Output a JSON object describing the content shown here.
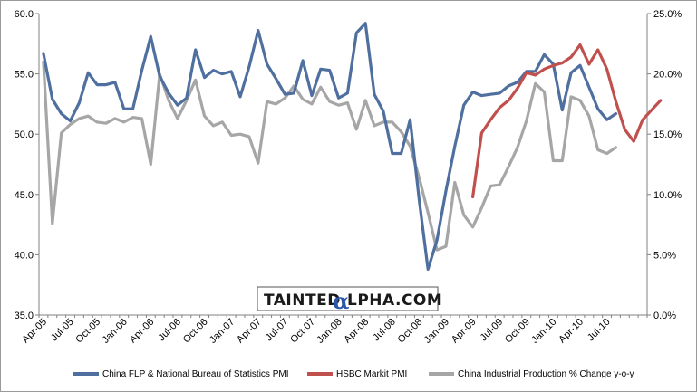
{
  "chart_data": {
    "type": "line",
    "title": "",
    "xlabel": "",
    "ylabel": "",
    "ylim": [
      35,
      60
    ],
    "y2lim": [
      0,
      25
    ],
    "yticks": [
      "35.0",
      "40.0",
      "45.0",
      "50.0",
      "55.0",
      "60.0"
    ],
    "y2ticks": [
      "0.0%",
      "5.0%",
      "10.0%",
      "15.0%",
      "20.0%",
      "25.0%"
    ],
    "xtick_labels": [
      "Apr-05",
      "Jul-05",
      "Oct-05",
      "Jan-06",
      "Apr-06",
      "Jul-06",
      "Oct-06",
      "Jan-07",
      "Apr-07",
      "Jul-07",
      "Oct-07",
      "Jan-08",
      "Apr-08",
      "Jul-08",
      "Oct-08",
      "Jan-09",
      "Apr-09",
      "Jul-09",
      "Oct-09",
      "Jan-10",
      "Apr-10",
      "Jul-10"
    ],
    "x_count": 68,
    "legend_position": "bottom",
    "series": [
      {
        "name": "China FLP & National Bureau of Statistics PMI",
        "axis": "left",
        "color": "#4f6f9f",
        "start": 0,
        "values": [
          56.7,
          52.9,
          51.7,
          51.1,
          52.6,
          55.1,
          54.1,
          54.1,
          54.3,
          52.1,
          52.1,
          55.3,
          58.1,
          54.8,
          53.4,
          52.4,
          53.0,
          57.0,
          54.7,
          55.3,
          55.0,
          55.2,
          53.1,
          55.6,
          58.6,
          55.8,
          54.6,
          53.3,
          53.4,
          56.1,
          53.2,
          55.4,
          55.3,
          53.0,
          53.4,
          58.4,
          59.2,
          53.3,
          51.9,
          48.4,
          48.4,
          51.2,
          44.6,
          38.8,
          41.2,
          45.3,
          49.0,
          52.4,
          53.5,
          53.2,
          53.3,
          53.4,
          54.0,
          54.3,
          55.2,
          55.2,
          56.6,
          55.8,
          52.0,
          55.1,
          55.7,
          53.9,
          52.1,
          51.2,
          51.7
        ]
      },
      {
        "name": "HSBC Markit PMI",
        "axis": "left",
        "color": "#c0504d",
        "start": 48,
        "values": [
          44.8,
          50.1,
          51.2,
          52.2,
          52.8,
          53.8,
          55.1,
          54.9,
          55.4,
          55.7,
          55.9,
          56.4,
          57.4,
          55.8,
          57.0,
          55.4,
          52.7,
          50.4,
          49.4,
          51.2,
          52.0,
          52.8
        ]
      },
      {
        "name": "China Industrial Production % Change y-o-y",
        "axis": "right",
        "color": "#a6a6a6",
        "start": 0,
        "values": [
          21.0,
          7.6,
          15.1,
          15.8,
          16.3,
          16.5,
          16.0,
          15.9,
          16.3,
          16.0,
          16.4,
          16.3,
          12.5,
          20.0,
          17.8,
          16.3,
          17.8,
          19.5,
          16.5,
          15.7,
          16.0,
          14.9,
          15.0,
          14.8,
          12.6,
          17.7,
          17.5,
          18.0,
          19.0,
          17.9,
          17.5,
          18.9,
          17.7,
          17.4,
          17.6,
          15.4,
          17.8,
          15.7,
          16.0,
          16.0,
          15.2,
          14.0,
          11.4,
          8.5,
          5.4,
          5.7,
          11.0,
          8.3,
          7.3,
          8.9,
          10.7,
          10.8,
          12.3,
          13.9,
          16.1,
          19.2,
          18.5,
          12.8,
          12.8,
          18.1,
          17.8,
          16.5,
          13.7,
          13.4,
          13.9
        ]
      }
    ]
  },
  "watermark": {
    "prefix": "TAINTED",
    "alpha": "α",
    "suffix": "LPHA.COM"
  }
}
